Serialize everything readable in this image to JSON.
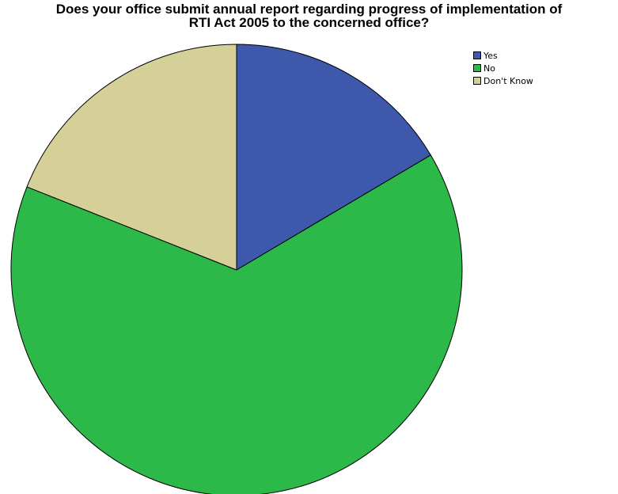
{
  "chart_data": {
    "type": "pie",
    "title_lines": [
      "Does your office submit annual report regarding progress of implementation of",
      "RTI Act 2005 to the concerned office?"
    ],
    "categories": [
      "Yes",
      "No",
      "Don't Know"
    ],
    "values": [
      16.5,
      64.5,
      19.0
    ],
    "colors": [
      "#3e58ac",
      "#2db84a",
      "#d5cf98"
    ],
    "start": "12 o'clock",
    "direction": "clockwise",
    "legend": "top-right"
  }
}
